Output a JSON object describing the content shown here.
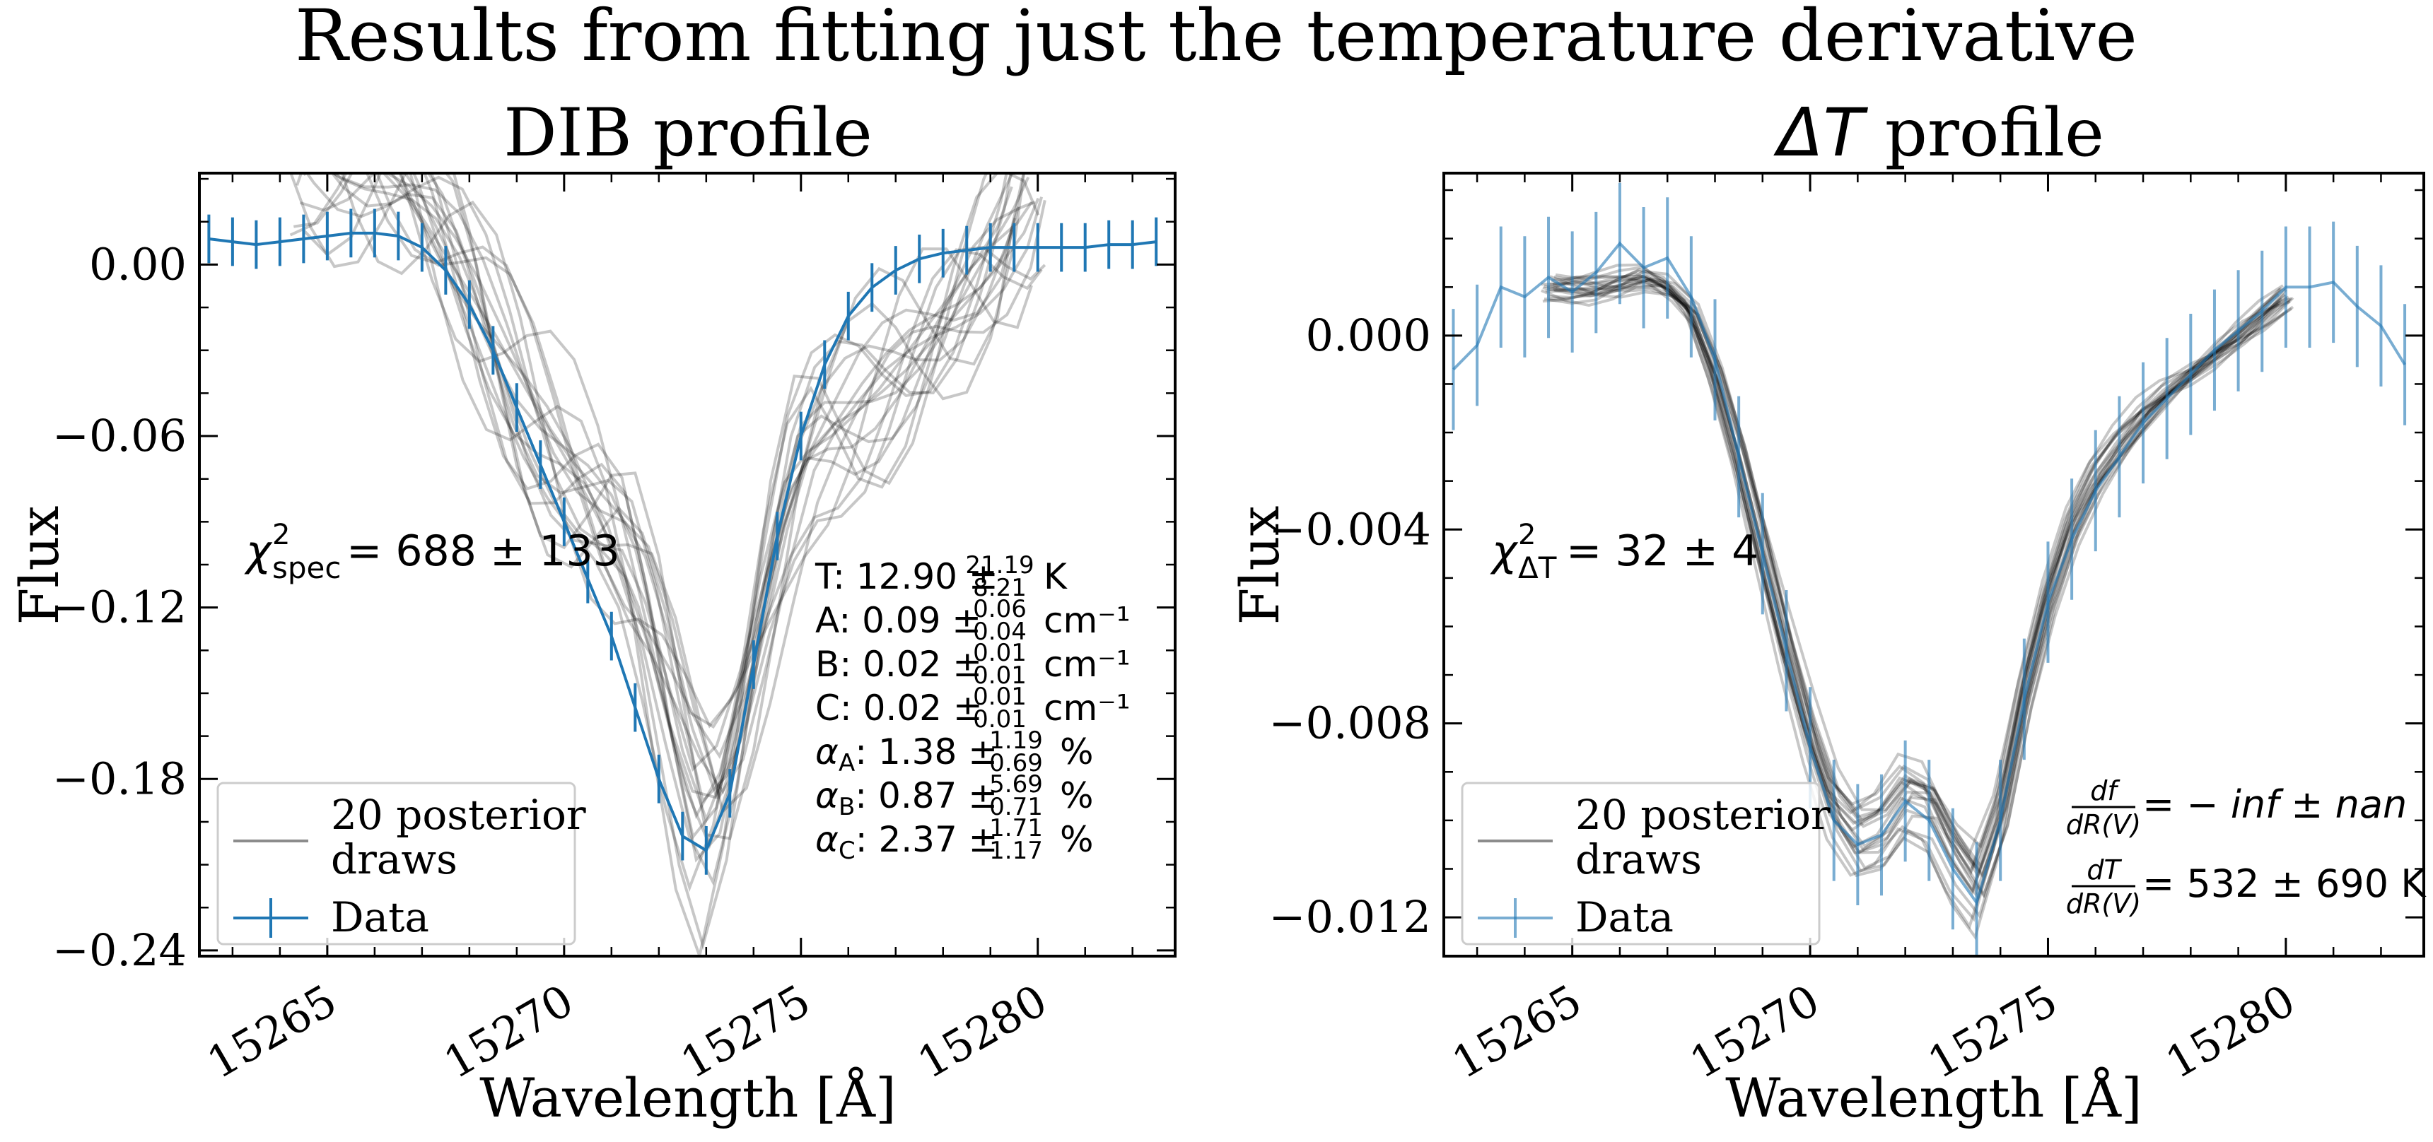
{
  "figure_title": "Results from fitting just the temperature derivative",
  "colors": {
    "data": "#1f77b4",
    "draws": "#000000",
    "axes": "#000000"
  },
  "chart_data": [
    {
      "type": "line",
      "title": "DIB profile",
      "xlabel": "Wavelength [Å]",
      "ylabel": "Flux",
      "xlim": [
        15262.3,
        15282.9
      ],
      "ylim": [
        -0.242,
        0.032
      ],
      "xticks": [
        15265,
        15270,
        15275,
        15280
      ],
      "xtick_labels": [
        "15265",
        "15270",
        "15275",
        "15280"
      ],
      "yticks": [
        0.0,
        -0.06,
        -0.12,
        -0.18,
        -0.24
      ],
      "ytick_labels": [
        "0.00",
        "−0.06",
        "−0.12",
        "−0.18",
        "−0.24"
      ],
      "grid": false,
      "legend": {
        "position": "lower-left",
        "draws_label_line1": "20 posterior",
        "draws_label_line2": "draws",
        "data_label": "Data"
      },
      "chi2": {
        "symbol": "χ",
        "sup": "2",
        "sub": "spec",
        "value": " = 688 ± 133"
      },
      "params": [
        {
          "sym": "T",
          "sub": "",
          "value": ": 12.90 ± ",
          "up": "21.19",
          "lo": "8.21",
          "unit": "K"
        },
        {
          "sym": "A",
          "sub": "",
          "value": ": 0.09 ± ",
          "up": "0.06",
          "lo": "0.04",
          "unit": "cm⁻¹"
        },
        {
          "sym": "B",
          "sub": "",
          "value": ": 0.02 ± ",
          "up": "0.01",
          "lo": "0.01",
          "unit": "cm⁻¹"
        },
        {
          "sym": "C",
          "sub": "",
          "value": ": 0.02 ± ",
          "up": "0.01",
          "lo": "0.01",
          "unit": "cm⁻¹"
        },
        {
          "sym": "α",
          "sub": "A",
          "value": ": 1.38 ± ",
          "up": "1.19",
          "lo": "0.69",
          "unit": "%"
        },
        {
          "sym": "α",
          "sub": "B",
          "value": ": 0.87 ± ",
          "up": "5.69",
          "lo": "0.71",
          "unit": "%"
        },
        {
          "sym": "α",
          "sub": "C",
          "value": ": 2.37 ± ",
          "up": "1.71",
          "lo": "1.17",
          "unit": "%"
        }
      ],
      "series": [
        {
          "name": "Data",
          "x": [
            15262.5,
            15263.0,
            15263.5,
            15264.0,
            15264.5,
            15265.0,
            15265.5,
            15266.0,
            15266.5,
            15267.0,
            15267.5,
            15268.0,
            15268.5,
            15269.0,
            15269.5,
            15270.0,
            15270.5,
            15271.0,
            15271.5,
            15272.0,
            15272.5,
            15273.0,
            15273.5,
            15274.0,
            15274.5,
            15275.0,
            15275.5,
            15276.0,
            15276.5,
            15277.0,
            15277.5,
            15278.0,
            15278.5,
            15279.0,
            15279.5,
            15280.0,
            15280.5,
            15281.0,
            15281.5,
            15282.0,
            15282.5
          ],
          "y": [
            0.009,
            0.008,
            0.007,
            0.008,
            0.009,
            0.01,
            0.011,
            0.011,
            0.01,
            0.006,
            -0.002,
            -0.014,
            -0.03,
            -0.05,
            -0.07,
            -0.09,
            -0.11,
            -0.13,
            -0.155,
            -0.18,
            -0.2,
            -0.205,
            -0.185,
            -0.14,
            -0.095,
            -0.06,
            -0.035,
            -0.018,
            -0.008,
            -0.002,
            0.002,
            0.004,
            0.005,
            0.006,
            0.006,
            0.006,
            0.006,
            0.006,
            0.007,
            0.007,
            0.008
          ],
          "yerr": 0.0085
        }
      ],
      "posterior_draws": {
        "count": 20,
        "x": [
          15264.5,
          15265.0,
          15265.5,
          15266.0,
          15266.5,
          15267.0,
          15267.5,
          15268.0,
          15268.5,
          15269.0,
          15269.5,
          15270.0,
          15270.5,
          15271.0,
          15271.5,
          15272.0,
          15272.5,
          15273.0,
          15273.5,
          15274.0,
          15274.5,
          15275.0,
          15275.5,
          15276.0,
          15276.5,
          15277.0,
          15277.5,
          15278.0,
          15278.5,
          15279.0,
          15279.5,
          15279.8
        ],
        "y": [
          0.04,
          0.04,
          0.038,
          0.035,
          0.03,
          0.022,
          0.01,
          -0.006,
          -0.025,
          -0.045,
          -0.062,
          -0.075,
          -0.085,
          -0.095,
          -0.11,
          -0.14,
          -0.175,
          -0.2,
          -0.18,
          -0.14,
          -0.1,
          -0.07,
          -0.06,
          -0.055,
          -0.048,
          -0.04,
          -0.03,
          -0.02,
          -0.01,
          0.0,
          0.012,
          0.025
        ]
      }
    },
    {
      "type": "line",
      "title_math": "ΔT",
      "title_rest": " profile",
      "xlabel": "Wavelength [Å]",
      "ylabel": "Flux",
      "xlim": [
        15262.3,
        15282.9
      ],
      "ylim": [
        -0.0128,
        0.00335
      ],
      "xticks": [
        15265,
        15270,
        15275,
        15280
      ],
      "xtick_labels": [
        "15265",
        "15270",
        "15275",
        "15280"
      ],
      "yticks": [
        0.0,
        -0.004,
        -0.008,
        -0.012
      ],
      "ytick_labels": [
        "0.000",
        "−0.004",
        "−0.008",
        "−0.012"
      ],
      "grid": false,
      "legend": {
        "position": "lower-left",
        "draws_label_line1": "20 posterior",
        "draws_label_line2": "draws",
        "data_label": "Data"
      },
      "chi2": {
        "symbol": "χ",
        "sup": "2",
        "sub": "ΔT",
        "value": " = 32 ± 4"
      },
      "derivs": [
        {
          "num": "df",
          "den": "dR(V)",
          "value": " = − inf ± nan"
        },
        {
          "num": "dT",
          "den": "dR(V)",
          "value": " = 532 ± 690 K"
        }
      ],
      "series": [
        {
          "name": "Data",
          "x": [
            15262.5,
            15263.0,
            15263.5,
            15264.0,
            15264.5,
            15265.0,
            15265.5,
            15266.0,
            15266.5,
            15267.0,
            15267.5,
            15268.0,
            15268.5,
            15269.0,
            15269.5,
            15270.0,
            15270.5,
            15271.0,
            15271.5,
            15272.0,
            15272.5,
            15273.0,
            15273.5,
            15274.0,
            15274.5,
            15275.0,
            15275.5,
            15276.0,
            15276.5,
            15277.0,
            15277.5,
            15278.0,
            15278.5,
            15279.0,
            15279.5,
            15280.0,
            15280.5,
            15281.0,
            15281.5,
            15282.0,
            15282.5
          ],
          "y": [
            -0.0007,
            -0.0002,
            0.001,
            0.0008,
            0.0012,
            0.0009,
            0.0013,
            0.0019,
            0.0014,
            0.0016,
            0.0008,
            -0.0005,
            -0.0025,
            -0.0045,
            -0.0065,
            -0.0085,
            -0.01,
            -0.0105,
            -0.0103,
            -0.0096,
            -0.01,
            -0.011,
            -0.0117,
            -0.01,
            -0.0075,
            -0.0055,
            -0.0042,
            -0.0032,
            -0.0025,
            -0.0018,
            -0.0013,
            -0.0008,
            -0.0003,
            0.0001,
            0.0005,
            0.001,
            0.001,
            0.0011,
            0.0006,
            0.0002,
            -0.0006
          ],
          "yerr": 0.00125
        }
      ],
      "posterior_draws": {
        "count": 20,
        "x": [
          15264.5,
          15265.0,
          15265.5,
          15266.0,
          15266.5,
          15267.0,
          15267.5,
          15268.0,
          15268.5,
          15269.0,
          15269.5,
          15270.0,
          15270.5,
          15271.0,
          15271.5,
          15272.0,
          15272.5,
          15273.0,
          15273.5,
          15274.0,
          15274.5,
          15275.0,
          15275.5,
          15276.0,
          15276.5,
          15277.0,
          15277.5,
          15278.0,
          15278.5,
          15279.0,
          15279.5,
          15280.0
        ],
        "y": [
          0.001,
          0.001,
          0.001,
          0.0011,
          0.0012,
          0.001,
          0.0005,
          -0.0008,
          -0.0025,
          -0.0045,
          -0.0065,
          -0.0083,
          -0.0098,
          -0.0105,
          -0.0103,
          -0.0096,
          -0.0098,
          -0.0108,
          -0.0115,
          -0.01,
          -0.0075,
          -0.0055,
          -0.004,
          -0.003,
          -0.0023,
          -0.0017,
          -0.0012,
          -0.0008,
          -0.0004,
          0.0,
          0.0004,
          0.0008
        ]
      }
    }
  ]
}
